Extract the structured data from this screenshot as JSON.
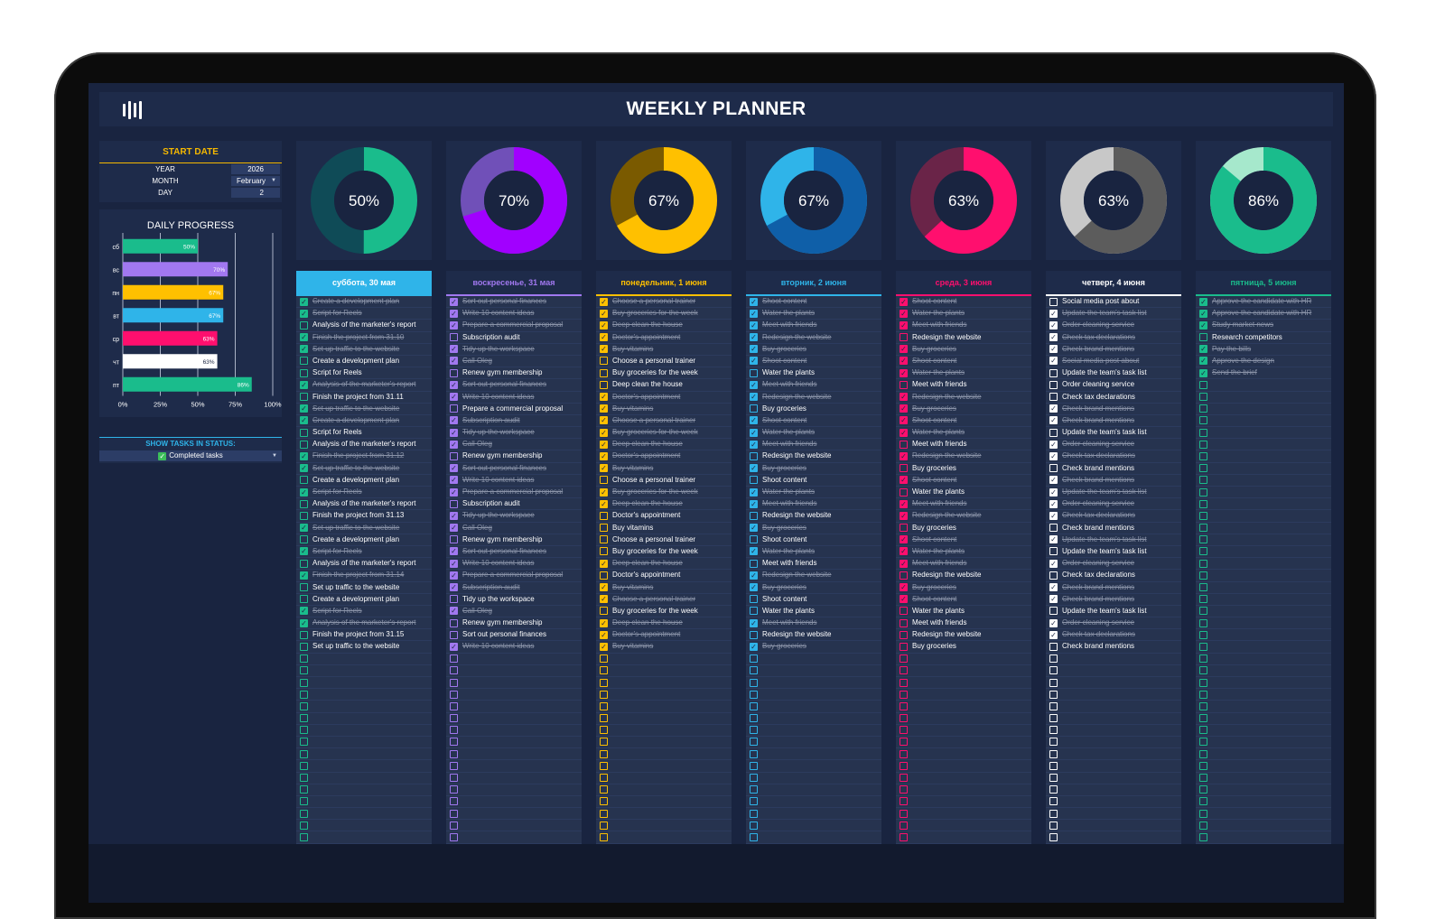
{
  "app": {
    "title": "WEEKLY PLANNER"
  },
  "start_date": {
    "header": "START DATE",
    "year_label": "YEAR",
    "year": "2026",
    "month_label": "MONTH",
    "month": "February",
    "day_label": "DAY",
    "day": "2"
  },
  "daily_progress_title": "DAILY PROGRESS",
  "status_filter": {
    "header": "SHOW TASKS IN STATUS:",
    "value": "Completed tasks"
  },
  "chart_data": {
    "type": "bar",
    "orientation": "horizontal",
    "title": "DAILY PROGRESS",
    "categories": [
      "сб",
      "вс",
      "пн",
      "вт",
      "ср",
      "чт",
      "пт"
    ],
    "values": [
      50,
      70,
      67,
      67,
      63,
      63,
      86
    ],
    "value_labels": [
      "50%",
      "70%",
      "67%",
      "67%",
      "63%",
      "63%",
      "86%"
    ],
    "xlim": [
      0,
      100
    ],
    "x_ticks": [
      "0%",
      "25%",
      "50%",
      "75%",
      "100%"
    ],
    "colors": [
      "#1abc8c",
      "#a178f0",
      "#ffc000",
      "#2fb4e9",
      "#ff0f6e",
      "#ffffff",
      "#1abc8c"
    ],
    "grid": true
  },
  "days": [
    {
      "header": "суббота, 30 мая",
      "percent": 50,
      "percent_label": "50%",
      "color": "#1abc8c",
      "ring_rest": "#0f4b57",
      "header_bg": "#2fb4e9",
      "header_fg": "#ffffff",
      "tasks": [
        {
          "t": "Create a development plan",
          "d": true
        },
        {
          "t": "Script for Reels",
          "d": true
        },
        {
          "t": "Analysis of the marketer's report",
          "d": false
        },
        {
          "t": "Finish the project from 31.10",
          "d": true
        },
        {
          "t": "Set up traffic to the website",
          "d": true
        },
        {
          "t": "Create a development plan",
          "d": false
        },
        {
          "t": "Script for Reels",
          "d": false
        },
        {
          "t": "Analysis of the marketer's report",
          "d": true
        },
        {
          "t": "Finish the project from 31.11",
          "d": false
        },
        {
          "t": "Set up traffic to the website",
          "d": true
        },
        {
          "t": "Create a development plan",
          "d": true
        },
        {
          "t": "Script for Reels",
          "d": false
        },
        {
          "t": "Analysis of the marketer's report",
          "d": false
        },
        {
          "t": "Finish the project from 31.12",
          "d": true
        },
        {
          "t": "Set up traffic to the website",
          "d": true
        },
        {
          "t": "Create a development plan",
          "d": false
        },
        {
          "t": "Script for Reels",
          "d": true
        },
        {
          "t": "Analysis of the marketer's report",
          "d": false
        },
        {
          "t": "Finish the project from 31.13",
          "d": false
        },
        {
          "t": "Set up traffic to the website",
          "d": true
        },
        {
          "t": "Create a development plan",
          "d": false
        },
        {
          "t": "Script for Reels",
          "d": true
        },
        {
          "t": "Analysis of the marketer's report",
          "d": false
        },
        {
          "t": "Finish the project from 31.14",
          "d": true
        },
        {
          "t": "Set up traffic to the website",
          "d": false
        },
        {
          "t": "Create a development plan",
          "d": false
        },
        {
          "t": "Script for Reels",
          "d": true
        },
        {
          "t": "Analysis of the marketer's report",
          "d": true
        },
        {
          "t": "Finish the project from 31.15",
          "d": false
        },
        {
          "t": "Set up traffic to the website",
          "d": false
        }
      ]
    },
    {
      "header": "воскресенье, 31 мая",
      "percent": 70,
      "percent_label": "70%",
      "color": "#a100ff",
      "ring_rest": "#7050b8",
      "header_bg": "#1e2b4a",
      "header_fg": "#a178f0",
      "tasks": [
        {
          "t": "Sort out personal finances",
          "d": true
        },
        {
          "t": "Write 10 content ideas",
          "d": true
        },
        {
          "t": "Prepare a commercial proposal",
          "d": true
        },
        {
          "t": "Subscription audit",
          "d": false
        },
        {
          "t": "Tidy up the workspace",
          "d": true
        },
        {
          "t": "Call Oleg",
          "d": true
        },
        {
          "t": "Renew gym membership",
          "d": false
        },
        {
          "t": "Sort out personal finances",
          "d": true
        },
        {
          "t": "Write 10 content ideas",
          "d": true
        },
        {
          "t": "Prepare a commercial proposal",
          "d": false
        },
        {
          "t": "Subscription audit",
          "d": true
        },
        {
          "t": "Tidy up the workspace",
          "d": true
        },
        {
          "t": "Call Oleg",
          "d": true
        },
        {
          "t": "Renew gym membership",
          "d": false
        },
        {
          "t": "Sort out personal finances",
          "d": true
        },
        {
          "t": "Write 10 content ideas",
          "d": true
        },
        {
          "t": "Prepare a commercial proposal",
          "d": true
        },
        {
          "t": "Subscription audit",
          "d": false
        },
        {
          "t": "Tidy up the workspace",
          "d": true
        },
        {
          "t": "Call Oleg",
          "d": true
        },
        {
          "t": "Renew gym membership",
          "d": false
        },
        {
          "t": "Sort out personal finances",
          "d": true
        },
        {
          "t": "Write 10 content ideas",
          "d": true
        },
        {
          "t": "Prepare a commercial proposal",
          "d": true
        },
        {
          "t": "Subscription audit",
          "d": true
        },
        {
          "t": "Tidy up the workspace",
          "d": false
        },
        {
          "t": "Call Oleg",
          "d": true
        },
        {
          "t": "Renew gym membership",
          "d": false
        },
        {
          "t": "Sort out personal finances",
          "d": false
        },
        {
          "t": "Write 10 content ideas",
          "d": true
        }
      ]
    },
    {
      "header": "понедельник, 1 июня",
      "percent": 67,
      "percent_label": "67%",
      "color": "#ffc000",
      "ring_rest": "#7a5a00",
      "header_bg": "#1e2b4a",
      "header_fg": "#ffc000",
      "tasks": [
        {
          "t": "Choose a personal trainer",
          "d": true
        },
        {
          "t": "Buy groceries for the week",
          "d": true
        },
        {
          "t": "Deep clean the house",
          "d": true
        },
        {
          "t": "Doctor's appointment",
          "d": true
        },
        {
          "t": "Buy vitamins",
          "d": true
        },
        {
          "t": "Choose a personal trainer",
          "d": false
        },
        {
          "t": "Buy groceries for the week",
          "d": false
        },
        {
          "t": "Deep clean the house",
          "d": false
        },
        {
          "t": "Doctor's appointment",
          "d": true
        },
        {
          "t": "Buy vitamins",
          "d": true
        },
        {
          "t": "Choose a personal trainer",
          "d": true
        },
        {
          "t": "Buy groceries for the week",
          "d": true
        },
        {
          "t": "Deep clean the house",
          "d": true
        },
        {
          "t": "Doctor's appointment",
          "d": true
        },
        {
          "t": "Buy vitamins",
          "d": true
        },
        {
          "t": "Choose a personal trainer",
          "d": false
        },
        {
          "t": "Buy groceries for the week",
          "d": true
        },
        {
          "t": "Deep clean the house",
          "d": true
        },
        {
          "t": "Doctor's appointment",
          "d": false
        },
        {
          "t": "Buy vitamins",
          "d": false
        },
        {
          "t": "Choose a personal trainer",
          "d": false
        },
        {
          "t": "Buy groceries for the week",
          "d": false
        },
        {
          "t": "Deep clean the house",
          "d": true
        },
        {
          "t": "Doctor's appointment",
          "d": false
        },
        {
          "t": "Buy vitamins",
          "d": true
        },
        {
          "t": "Choose a personal trainer",
          "d": true
        },
        {
          "t": "Buy groceries for the week",
          "d": false
        },
        {
          "t": "Deep clean the house",
          "d": true
        },
        {
          "t": "Doctor's appointment",
          "d": true
        },
        {
          "t": "Buy vitamins",
          "d": true
        }
      ]
    },
    {
      "header": "вторник, 2 июня",
      "percent": 67,
      "percent_label": "67%",
      "color": "#0f5fa8",
      "ring_rest": "#2fb4e9",
      "header_bg": "#1e2b4a",
      "header_fg": "#2fb4e9",
      "tasks": [
        {
          "t": "Shoot content",
          "d": true
        },
        {
          "t": "Water the plants",
          "d": true
        },
        {
          "t": "Meet with friends",
          "d": true
        },
        {
          "t": "Redesign the website",
          "d": true
        },
        {
          "t": "Buy groceries",
          "d": true
        },
        {
          "t": "Shoot content",
          "d": true
        },
        {
          "t": "Water the plants",
          "d": false
        },
        {
          "t": "Meet with friends",
          "d": true
        },
        {
          "t": "Redesign the website",
          "d": true
        },
        {
          "t": "Buy groceries",
          "d": false
        },
        {
          "t": "Shoot content",
          "d": true
        },
        {
          "t": "Water the plants",
          "d": true
        },
        {
          "t": "Meet with friends",
          "d": true
        },
        {
          "t": "Redesign the website",
          "d": false
        },
        {
          "t": "Buy groceries",
          "d": true
        },
        {
          "t": "Shoot content",
          "d": false
        },
        {
          "t": "Water the plants",
          "d": true
        },
        {
          "t": "Meet with friends",
          "d": true
        },
        {
          "t": "Redesign the website",
          "d": false
        },
        {
          "t": "Buy groceries",
          "d": true
        },
        {
          "t": "Shoot content",
          "d": false
        },
        {
          "t": "Water the plants",
          "d": true
        },
        {
          "t": "Meet with friends",
          "d": false
        },
        {
          "t": "Redesign the website",
          "d": true
        },
        {
          "t": "Buy groceries",
          "d": true
        },
        {
          "t": "Shoot content",
          "d": false
        },
        {
          "t": "Water the plants",
          "d": false
        },
        {
          "t": "Meet with friends",
          "d": true
        },
        {
          "t": "Redesign the website",
          "d": false
        },
        {
          "t": "Buy groceries",
          "d": true
        }
      ]
    },
    {
      "header": "среда, 3 июня",
      "percent": 63,
      "percent_label": "63%",
      "color": "#ff0f6e",
      "ring_rest": "#6a2448",
      "header_bg": "#1e2b4a",
      "header_fg": "#ff0f6e",
      "tasks": [
        {
          "t": "Shoot content",
          "d": true
        },
        {
          "t": "Water the plants",
          "d": true
        },
        {
          "t": "Meet with friends",
          "d": true
        },
        {
          "t": "Redesign the website",
          "d": false
        },
        {
          "t": "Buy groceries",
          "d": true
        },
        {
          "t": "Shoot content",
          "d": true
        },
        {
          "t": "Water the plants",
          "d": true
        },
        {
          "t": "Meet with friends",
          "d": false
        },
        {
          "t": "Redesign the website",
          "d": true
        },
        {
          "t": "Buy groceries",
          "d": true
        },
        {
          "t": "Shoot content",
          "d": true
        },
        {
          "t": "Water the plants",
          "d": true
        },
        {
          "t": "Meet with friends",
          "d": false
        },
        {
          "t": "Redesign the website",
          "d": true
        },
        {
          "t": "Buy groceries",
          "d": false
        },
        {
          "t": "Shoot content",
          "d": true
        },
        {
          "t": "Water the plants",
          "d": false
        },
        {
          "t": "Meet with friends",
          "d": true
        },
        {
          "t": "Redesign the website",
          "d": true
        },
        {
          "t": "Buy groceries",
          "d": false
        },
        {
          "t": "Shoot content",
          "d": true
        },
        {
          "t": "Water the plants",
          "d": true
        },
        {
          "t": "Meet with friends",
          "d": true
        },
        {
          "t": "Redesign the website",
          "d": false
        },
        {
          "t": "Buy groceries",
          "d": true
        },
        {
          "t": "Shoot content",
          "d": true
        },
        {
          "t": "Water the plants",
          "d": false
        },
        {
          "t": "Meet with friends",
          "d": false
        },
        {
          "t": "Redesign the website",
          "d": false
        },
        {
          "t": "Buy groceries",
          "d": false
        }
      ]
    },
    {
      "header": "четверг, 4 июня",
      "percent": 63,
      "percent_label": "63%",
      "color": "#5c5c5c",
      "ring_rest": "#c8c8c8",
      "header_bg": "#1e2b4a",
      "header_fg": "#ffffff",
      "tasks": [
        {
          "t": "Social media post about",
          "d": false
        },
        {
          "t": "Update the team's task list",
          "d": true
        },
        {
          "t": "Order cleaning service",
          "d": true
        },
        {
          "t": "Check tax declarations",
          "d": true
        },
        {
          "t": "Check brand mentions",
          "d": true
        },
        {
          "t": "Social media post about",
          "d": true
        },
        {
          "t": "Update the team's task list",
          "d": false
        },
        {
          "t": "Order cleaning service",
          "d": false
        },
        {
          "t": "Check tax declarations",
          "d": false
        },
        {
          "t": "Check brand mentions",
          "d": true
        },
        {
          "t": "Check brand mentions",
          "d": true
        },
        {
          "t": "Update the team's task list",
          "d": false
        },
        {
          "t": "Order cleaning service",
          "d": true
        },
        {
          "t": "Check tax declarations",
          "d": true
        },
        {
          "t": "Check brand mentions",
          "d": false
        },
        {
          "t": "Check brand mentions",
          "d": true
        },
        {
          "t": "Update the team's task list",
          "d": true
        },
        {
          "t": "Order cleaning service",
          "d": true
        },
        {
          "t": "Check tax declarations",
          "d": true
        },
        {
          "t": "Check brand mentions",
          "d": false
        },
        {
          "t": "Update the team's task list",
          "d": true
        },
        {
          "t": "Update the team's task list",
          "d": false
        },
        {
          "t": "Order cleaning service",
          "d": true
        },
        {
          "t": "Check tax declarations",
          "d": false
        },
        {
          "t": "Check brand mentions",
          "d": true
        },
        {
          "t": "Check brand mentions",
          "d": true
        },
        {
          "t": "Update the team's task list",
          "d": false
        },
        {
          "t": "Order cleaning service",
          "d": true
        },
        {
          "t": "Check tax declarations",
          "d": true
        },
        {
          "t": "Check brand mentions",
          "d": false
        }
      ]
    },
    {
      "header": "пятница, 5 июня",
      "percent": 86,
      "percent_label": "86%",
      "color": "#1abc8c",
      "ring_rest": "#a6e8cc",
      "header_bg": "#1e2b4a",
      "header_fg": "#1abc8c",
      "tasks": [
        {
          "t": "Approve the candidate with HR",
          "d": true
        },
        {
          "t": "Approve the candidate with HR",
          "d": true
        },
        {
          "t": "Study market news",
          "d": true
        },
        {
          "t": "Research competitors",
          "d": false
        },
        {
          "t": "Pay the bills",
          "d": true
        },
        {
          "t": "Approve the design",
          "d": true
        },
        {
          "t": "Send the brief",
          "d": true
        }
      ]
    }
  ]
}
